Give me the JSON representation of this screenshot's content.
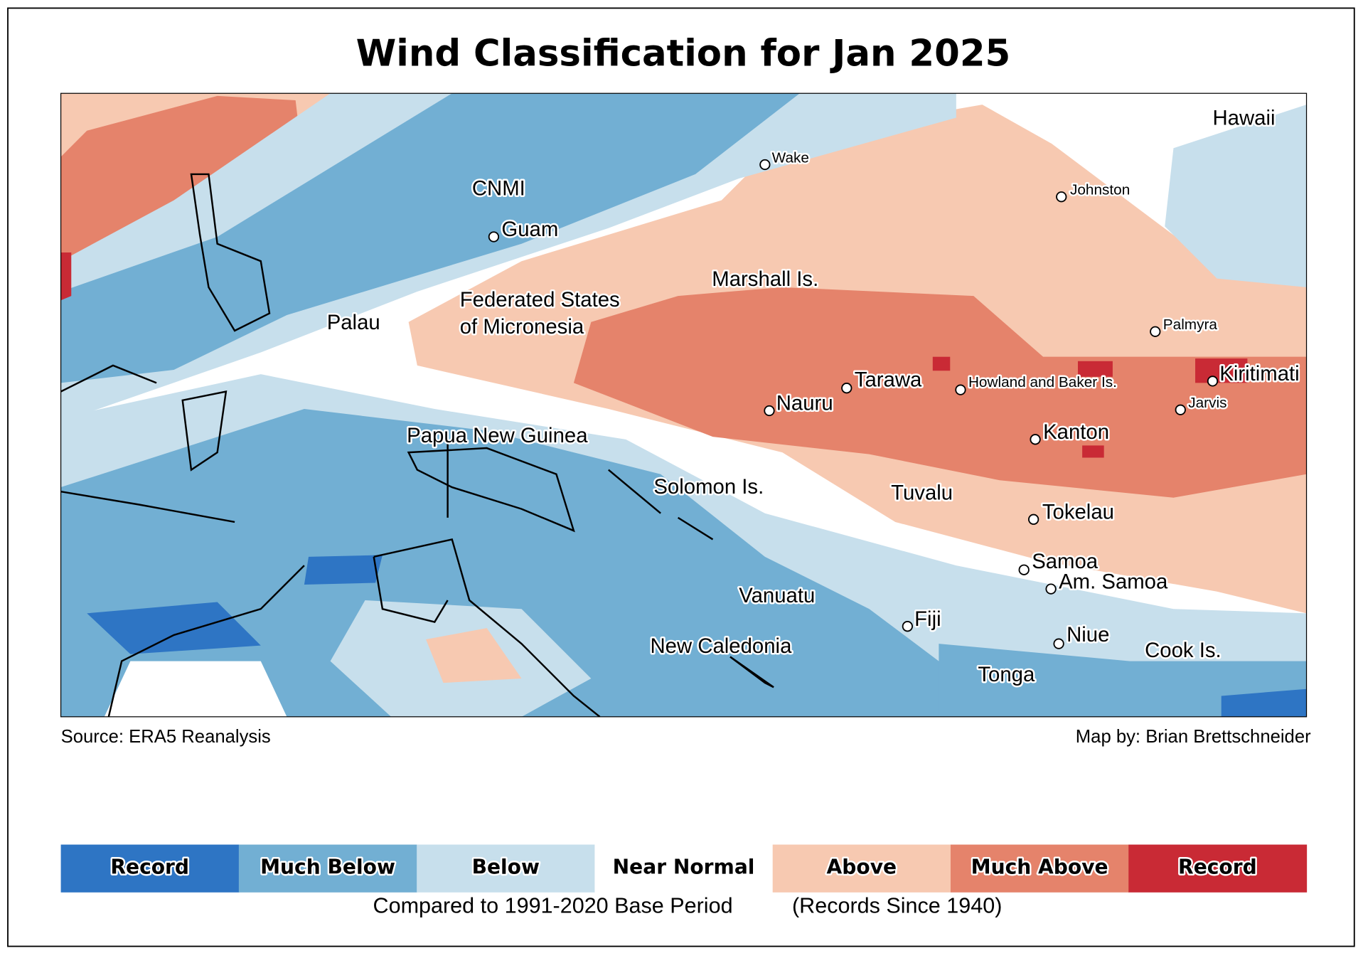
{
  "title": "Wind Classification for Jan 2025",
  "places": [
    {
      "label": "Hawaii"
    },
    {
      "label": "Wake"
    },
    {
      "label": "Johnston"
    },
    {
      "label": "CNMI"
    },
    {
      "label": "Guam"
    },
    {
      "label": "Marshall Is."
    },
    {
      "label": "Palau"
    },
    {
      "label": "Federated States"
    },
    {
      "label": "of Micronesia"
    },
    {
      "label": "Palmyra"
    },
    {
      "label": "Tarawa"
    },
    {
      "label": "Howland and Baker Is."
    },
    {
      "label": "Kiritimati"
    },
    {
      "label": "Jarvis"
    },
    {
      "label": "Nauru"
    },
    {
      "label": "Kanton"
    },
    {
      "label": "Papua New Guinea"
    },
    {
      "label": "Solomon Is."
    },
    {
      "label": "Tuvalu"
    },
    {
      "label": "Tokelau"
    },
    {
      "label": "Samoa"
    },
    {
      "label": "Am. Samoa"
    },
    {
      "label": "Vanuatu"
    },
    {
      "label": "Fiji"
    },
    {
      "label": "Niue"
    },
    {
      "label": "New Caledonia"
    },
    {
      "label": "Cook Is."
    },
    {
      "label": "Tonga"
    }
  ],
  "source": "Source: ERA5 Reanalysis",
  "credit": "Map by: Brian Brettschneider",
  "legend": {
    "categories": [
      {
        "label": "Record",
        "color": "#2e75c4"
      },
      {
        "label": "Much Below",
        "color": "#72afd3"
      },
      {
        "label": "Below",
        "color": "#c7dfec"
      },
      {
        "label": "Near Normal",
        "color": "#ffffff"
      },
      {
        "label": "Above",
        "color": "#f7c9b1"
      },
      {
        "label": "Much Above",
        "color": "#e5836b"
      },
      {
        "label": "Record",
        "color": "#c92a35"
      }
    ],
    "note": "Compared to 1991-2020 Base Period",
    "note2": "(Records Since 1940)"
  }
}
